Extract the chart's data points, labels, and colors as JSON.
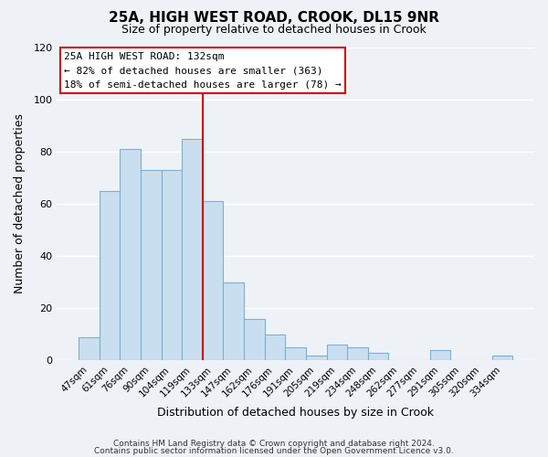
{
  "title": "25A, HIGH WEST ROAD, CROOK, DL15 9NR",
  "subtitle": "Size of property relative to detached houses in Crook",
  "xlabel": "Distribution of detached houses by size in Crook",
  "ylabel": "Number of detached properties",
  "bar_labels": [
    "47sqm",
    "61sqm",
    "76sqm",
    "90sqm",
    "104sqm",
    "119sqm",
    "133sqm",
    "147sqm",
    "162sqm",
    "176sqm",
    "191sqm",
    "205sqm",
    "219sqm",
    "234sqm",
    "248sqm",
    "262sqm",
    "277sqm",
    "291sqm",
    "305sqm",
    "320sqm",
    "334sqm"
  ],
  "bar_values": [
    9,
    65,
    81,
    73,
    73,
    85,
    61,
    30,
    16,
    10,
    5,
    2,
    6,
    5,
    3,
    0,
    0,
    4,
    0,
    0,
    2
  ],
  "bar_color": "#c9dff0",
  "bar_edge_color": "#7ab0d4",
  "vline_x_index": 6,
  "vline_color": "#cc0000",
  "ylim": [
    0,
    120
  ],
  "yticks": [
    0,
    20,
    40,
    60,
    80,
    100,
    120
  ],
  "annotation_title": "25A HIGH WEST ROAD: 132sqm",
  "annotation_line1": "← 82% of detached houses are smaller (363)",
  "annotation_line2": "18% of semi-detached houses are larger (78) →",
  "annotation_box_facecolor": "#ffffff",
  "annotation_box_edgecolor": "#cc0000",
  "footer1": "Contains HM Land Registry data © Crown copyright and database right 2024.",
  "footer2": "Contains public sector information licensed under the Open Government Licence v3.0.",
  "background_color": "#eef2f7",
  "grid_color": "#ffffff",
  "title_fontsize": 11,
  "subtitle_fontsize": 9,
  "axis_label_fontsize": 9,
  "tick_fontsize": 7.5,
  "annotation_fontsize": 8,
  "footer_fontsize": 6.5
}
